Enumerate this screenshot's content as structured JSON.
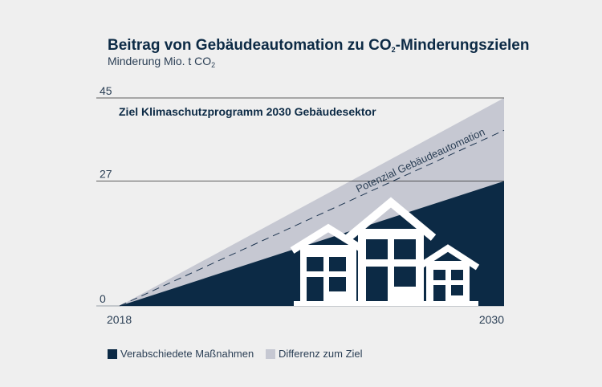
{
  "chart_data": {
    "type": "area",
    "title": "Beitrag von Gebäudeautomation zu CO",
    "title_sub": "2",
    "title_rest": "-Minderungszielen",
    "subtitle": "Minderung Mio. t CO",
    "subtitle_sub": "2",
    "x": [
      2018,
      2030
    ],
    "xlim": [
      2018,
      2030
    ],
    "ylim": [
      0,
      45
    ],
    "y_ticks": [
      0,
      27,
      45
    ],
    "x_ticks": [
      2018,
      2030
    ],
    "series": [
      {
        "name": "Verabschiedete Maßnahmen",
        "values": [
          0,
          27
        ],
        "color": "#0c2a45"
      },
      {
        "name": "Differenz zum Ziel",
        "values": [
          0,
          45
        ],
        "color": "#c6c8d2"
      }
    ],
    "dashed_line": {
      "label": "Potenzial Gebäudeautomation",
      "values": [
        0,
        38
      ]
    },
    "target_label": "Ziel Klimaschutzprogramm 2030 Gebäudesektor",
    "legend_position": "bottom-left"
  }
}
